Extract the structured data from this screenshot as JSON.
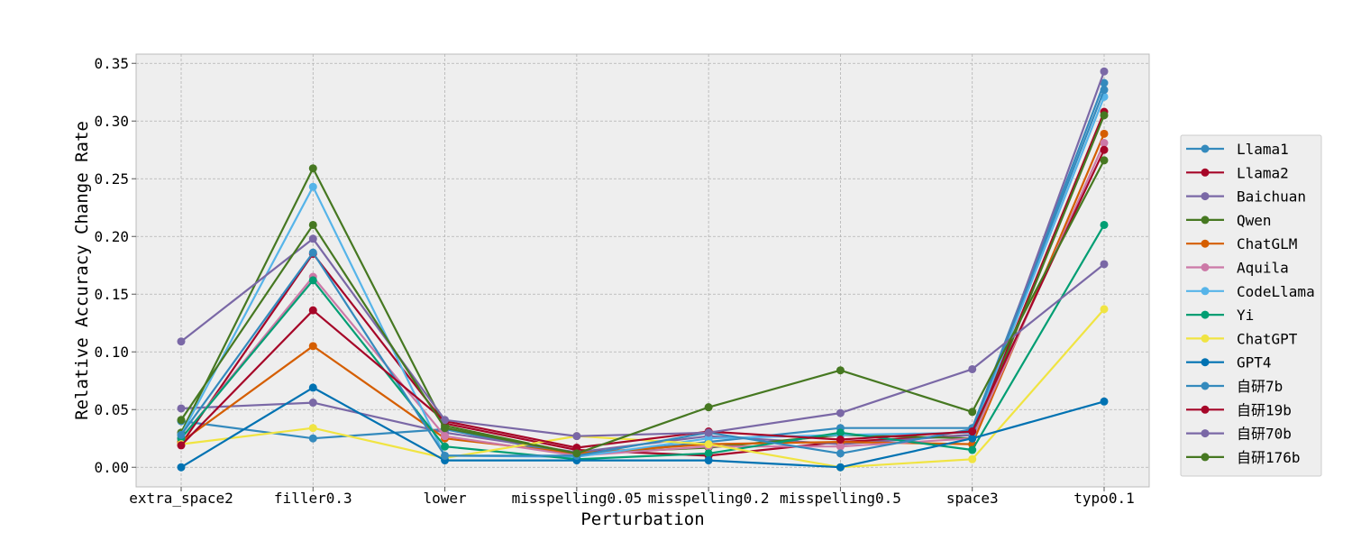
{
  "chart_data": {
    "type": "line",
    "title": "",
    "xlabel": "Perturbation",
    "ylabel": "Relative Accuracy Change Rate",
    "categories": [
      "extra_space2",
      "filler0.3",
      "lower",
      "misspelling0.05",
      "misspelling0.2",
      "misspelling0.5",
      "space3",
      "typo0.1"
    ],
    "y_ticks": [
      0.0,
      0.05,
      0.1,
      0.15,
      0.2,
      0.25,
      0.3,
      0.35
    ],
    "y_tick_labels": [
      "0.00",
      "0.05",
      "0.10",
      "0.15",
      "0.20",
      "0.25",
      "0.30",
      "0.35"
    ],
    "ylim": [
      -0.017,
      0.358
    ],
    "grid": true,
    "legend_position": "right",
    "series": [
      {
        "name": "Llama1",
        "color": "#348abd",
        "values": [
          0.04,
          0.025,
          0.033,
          0.01,
          0.022,
          0.034,
          0.034,
          0.333
        ]
      },
      {
        "name": "Llama2",
        "color": "#a60628",
        "values": [
          0.02,
          0.185,
          0.038,
          0.015,
          0.01,
          0.022,
          0.028,
          0.308
        ]
      },
      {
        "name": "Baichuan",
        "color": "#7a68a6",
        "values": [
          0.051,
          0.056,
          0.03,
          0.013,
          0.027,
          0.02,
          0.028,
          0.343
        ]
      },
      {
        "name": "Qwen",
        "color": "#467821",
        "values": [
          0.03,
          0.259,
          0.036,
          0.012,
          0.017,
          0.028,
          0.025,
          0.305
        ]
      },
      {
        "name": "ChatGLM",
        "color": "#d55e00",
        "values": [
          0.022,
          0.105,
          0.025,
          0.012,
          0.02,
          0.022,
          0.02,
          0.289
        ]
      },
      {
        "name": "Aquila",
        "color": "#cc79a7",
        "values": [
          0.025,
          0.165,
          0.027,
          0.01,
          0.018,
          0.018,
          0.025,
          0.281
        ]
      },
      {
        "name": "CodeLlama",
        "color": "#56b4e9",
        "values": [
          0.028,
          0.243,
          0.01,
          0.009,
          0.025,
          0.028,
          0.03,
          0.321
        ]
      },
      {
        "name": "Yi",
        "color": "#009e73",
        "values": [
          0.025,
          0.162,
          0.018,
          0.007,
          0.012,
          0.03,
          0.015,
          0.21
        ]
      },
      {
        "name": "ChatGPT",
        "color": "#f0e442",
        "values": [
          0.02,
          0.034,
          0.008,
          0.027,
          0.02,
          0.0,
          0.007,
          0.137
        ]
      },
      {
        "name": "GPT4",
        "color": "#0072b2",
        "values": [
          0.0,
          0.069,
          0.006,
          0.006,
          0.006,
          0.0,
          0.025,
          0.057
        ]
      },
      {
        "name": "自研7b",
        "color": "#348abd",
        "values": [
          0.028,
          0.186,
          0.01,
          0.01,
          0.03,
          0.012,
          0.033,
          0.327
        ]
      },
      {
        "name": "自研19b",
        "color": "#a60628",
        "values": [
          0.019,
          0.136,
          0.04,
          0.017,
          0.031,
          0.024,
          0.031,
          0.275
        ]
      },
      {
        "name": "自研70b",
        "color": "#7a68a6",
        "values": [
          0.109,
          0.198,
          0.041,
          0.027,
          0.03,
          0.047,
          0.085,
          0.176
        ]
      },
      {
        "name": "自研176b",
        "color": "#467821",
        "values": [
          0.041,
          0.21,
          0.034,
          0.012,
          0.052,
          0.084,
          0.048,
          0.266
        ]
      }
    ]
  }
}
